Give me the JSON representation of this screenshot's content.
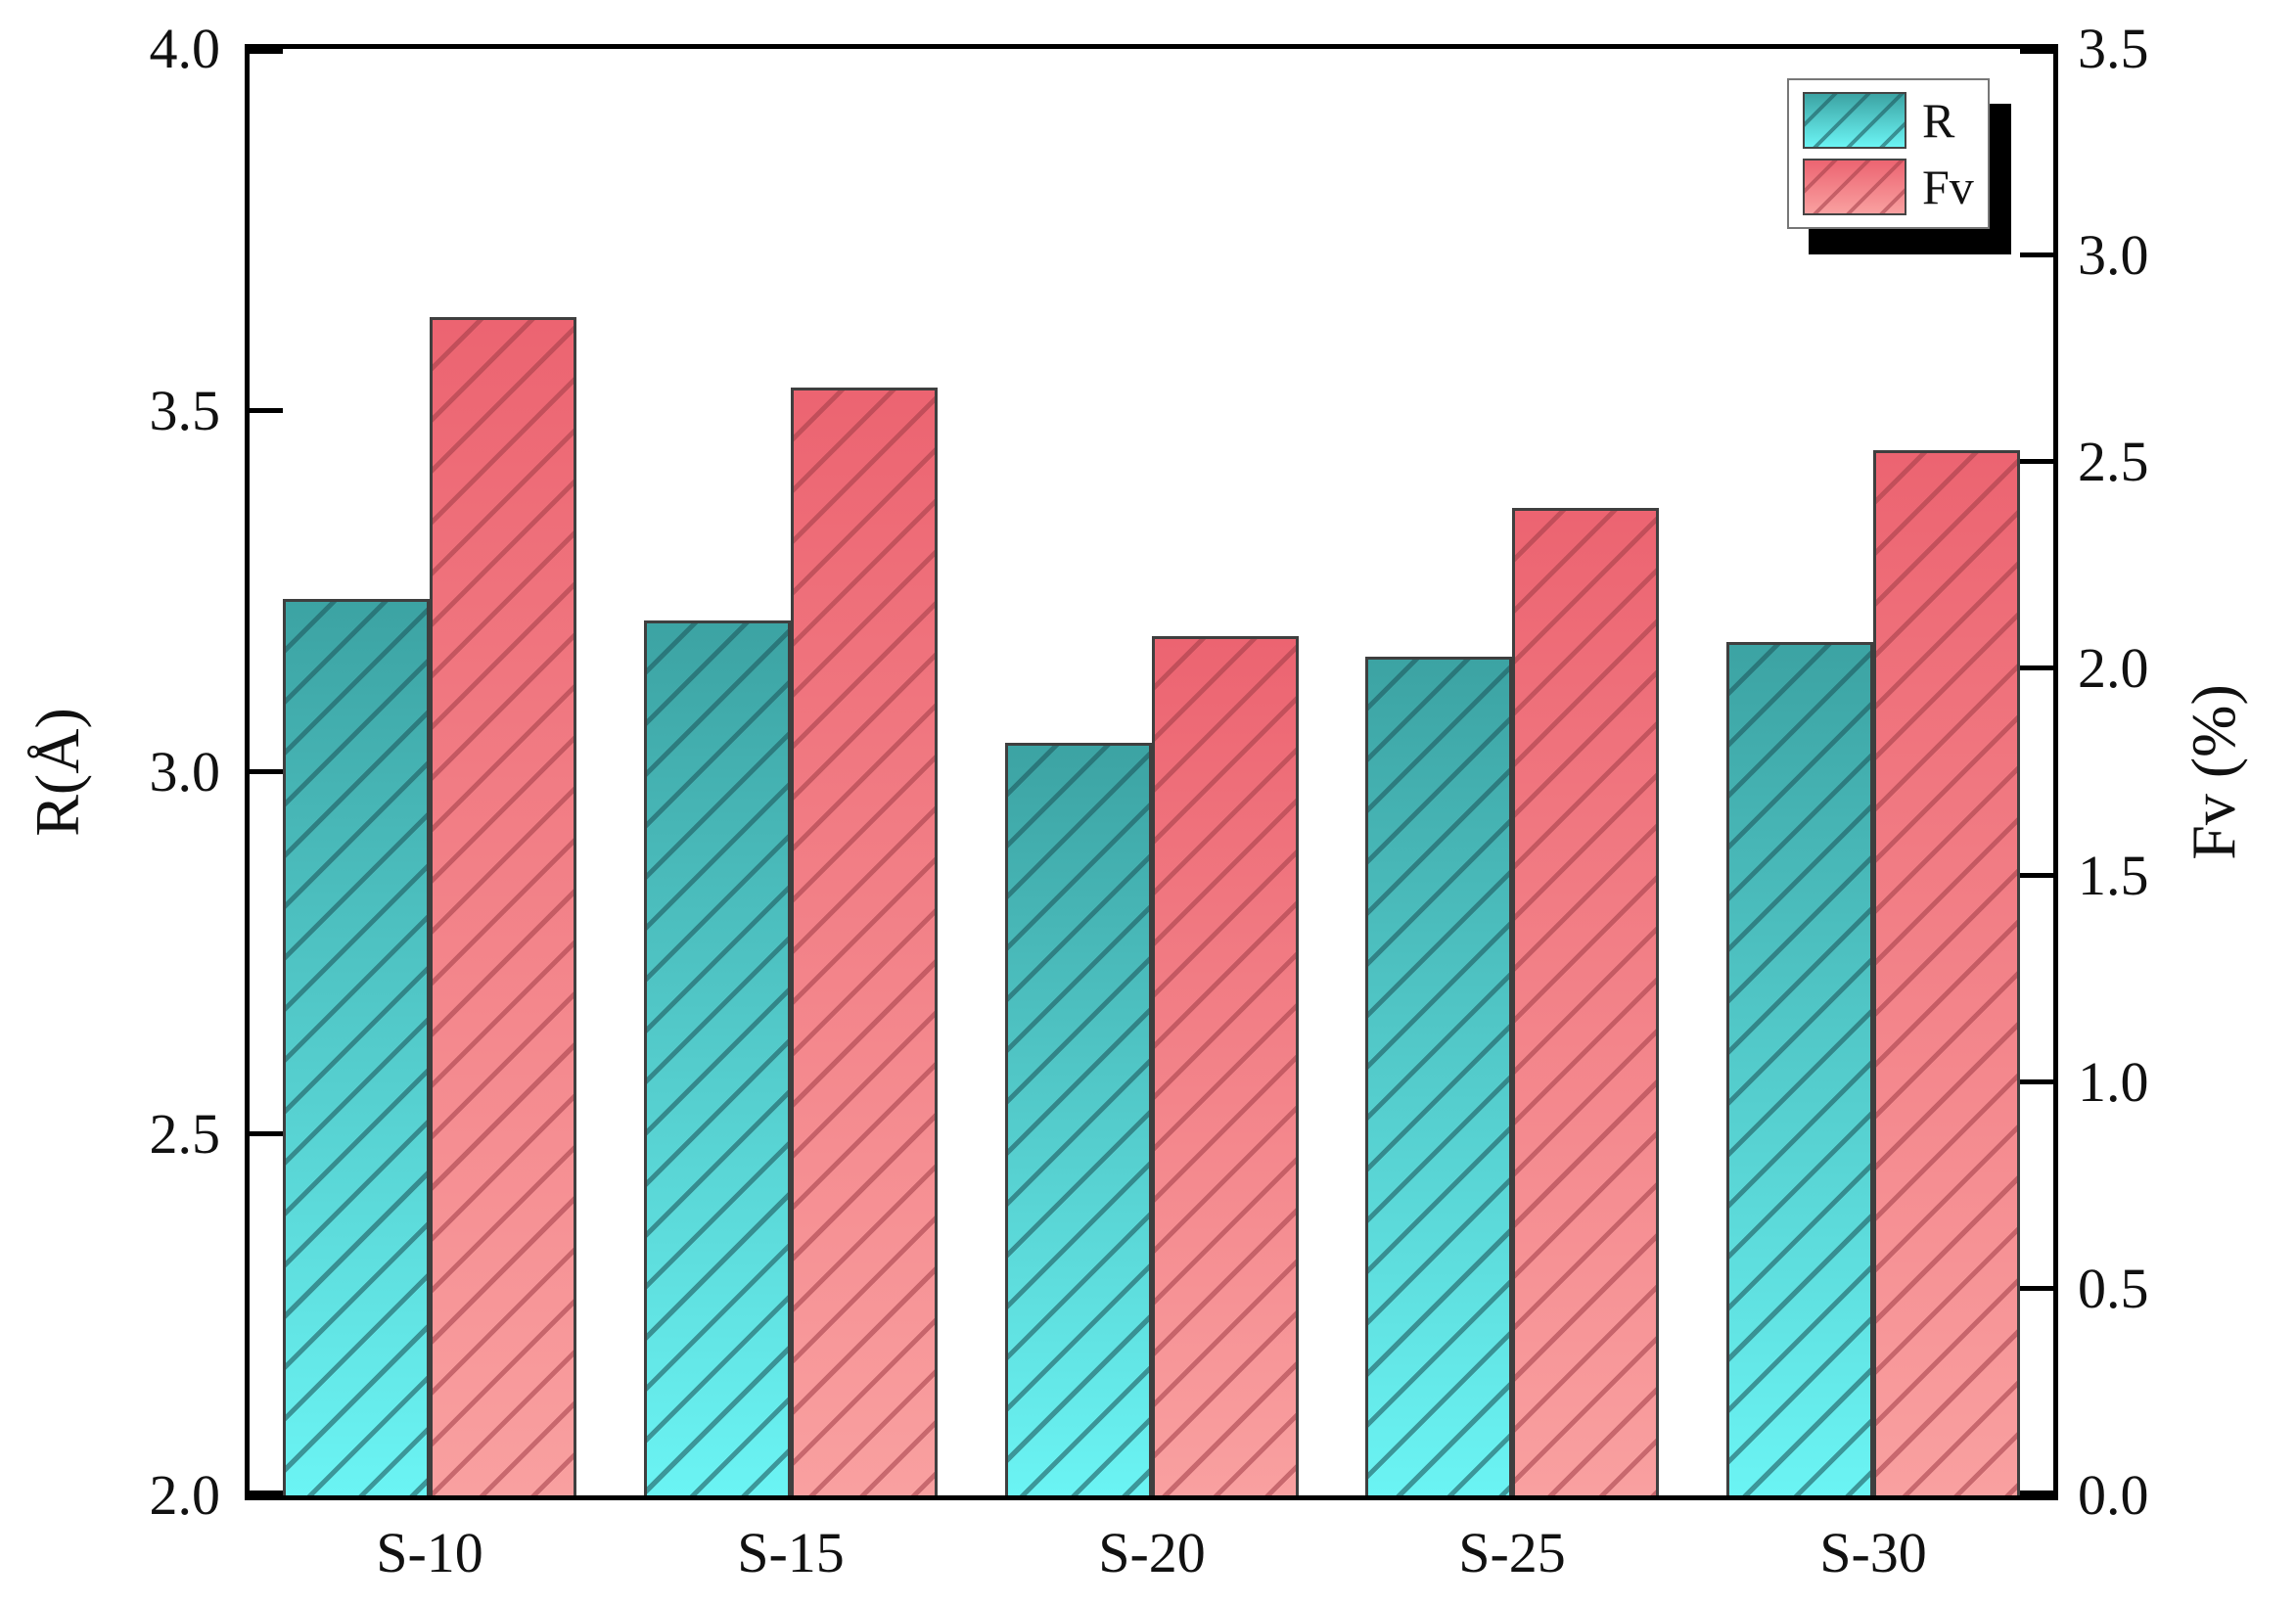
{
  "chart_data": {
    "type": "bar",
    "title": "",
    "categories": [
      "S-10",
      "S-15",
      "S-20",
      "S-25",
      "S-30"
    ],
    "series": [
      {
        "name": "R",
        "axis": "left",
        "values": [
          3.24,
          3.21,
          3.04,
          3.16,
          3.18
        ],
        "color_top": "#3ca3a3",
        "color_bottom": "#6bf4f4",
        "hatch_color": "rgba(30,90,95,0.6)",
        "hatch": "diagonal-forward"
      },
      {
        "name": "Fv",
        "axis": "right",
        "values": [
          2.85,
          2.68,
          2.08,
          2.39,
          2.53
        ],
        "color_top": "#ec6471",
        "color_bottom": "#f9a0a0",
        "hatch_color": "rgba(160,60,70,0.55)",
        "hatch": "diagonal-forward"
      }
    ],
    "left_axis": {
      "label": "R(Å)",
      "min": 2.0,
      "max": 4.0,
      "ticks": [
        "4.0",
        "3.5",
        "3.0",
        "2.5",
        "2.0"
      ]
    },
    "right_axis": {
      "label": "Fv (%)",
      "min": 0.0,
      "max": 3.5,
      "ticks": [
        "3.5",
        "3.0",
        "2.5",
        "2.0",
        "1.5",
        "1.0",
        "0.5",
        "0.0"
      ]
    },
    "x_axis": {
      "label": ""
    },
    "legend": {
      "items": [
        "R",
        "Fv"
      ],
      "position": "top-right"
    },
    "grid": "off",
    "frame": "box",
    "tick_direction": "in"
  }
}
